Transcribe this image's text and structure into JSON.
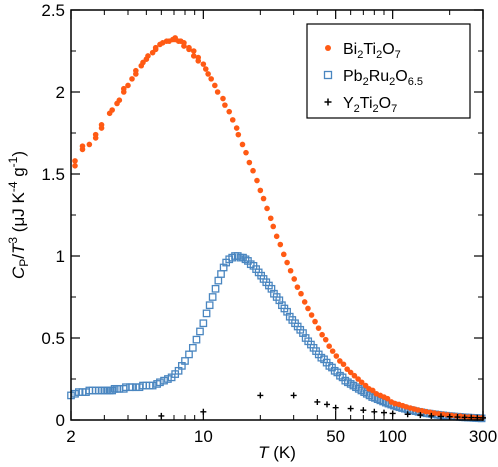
{
  "chart_data": {
    "type": "scatter",
    "x_scale": "log",
    "xlim": [
      2,
      300
    ],
    "ylim": [
      0,
      2.5
    ],
    "x_ticks": [
      2,
      10,
      50,
      100,
      300
    ],
    "x_tick_labels": [
      "2",
      "10",
      "50",
      "100",
      "300"
    ],
    "y_ticks": [
      0,
      0.5,
      1,
      1.5,
      2,
      2.5
    ],
    "y_tick_labels": [
      "0",
      "0.5",
      "1",
      "1.5",
      "2",
      "2.5"
    ],
    "xlabel": {
      "var": "T",
      "unit": " (K)"
    },
    "ylabel": {
      "main": "C",
      "sub": "P",
      "slash": "/",
      "var": "T",
      "exp": "3",
      "unit": " (μJ K",
      "unit_exp1": "-4",
      "unit_mid": " g",
      "unit_exp2": "-1",
      "unit_end": ")"
    },
    "grid": false,
    "legend_position": "top-right",
    "series": [
      {
        "name": "Bi2Ti2O7",
        "name_parts": [
          [
            "Bi",
            ""
          ],
          [
            "2",
            "sub"
          ],
          [
            "Ti",
            ""
          ],
          [
            "2",
            "sub"
          ],
          [
            "O",
            ""
          ],
          [
            "7",
            "sub"
          ]
        ],
        "marker": "dot",
        "color": "#ff5a14",
        "x": [
          2.1,
          2.1,
          2.3,
          2.3,
          2.5,
          2.7,
          2.7,
          2.9,
          2.9,
          3.2,
          3.3,
          3.5,
          3.6,
          3.8,
          3.8,
          4.0,
          4.2,
          4.4,
          4.4,
          4.7,
          4.8,
          5.0,
          5.1,
          5.4,
          5.6,
          5.6,
          5.9,
          6.1,
          6.4,
          6.6,
          6.9,
          7.1,
          7.1,
          7.4,
          7.6,
          7.9,
          7.9,
          8.4,
          8.4,
          8.9,
          8.9,
          9.4,
          9.4,
          10.0,
          10.3,
          10.6,
          11.0,
          11.5,
          11.9,
          12.7,
          13.0,
          13.7,
          14.3,
          15.0,
          15.3,
          16.1,
          16.8,
          17.5,
          18.3,
          19.2,
          20.0,
          20.8,
          21.7,
          22.7,
          23.4,
          24.4,
          25.5,
          26.6,
          27.7,
          28.9,
          30.2,
          31.4,
          32.8,
          34.3,
          35.7,
          37.3,
          38.9,
          40.6,
          42.4,
          44.3,
          46.2,
          48.2,
          50.4,
          52.6,
          55.0,
          57.5,
          60.0,
          62.8,
          65.7,
          68.6,
          72.0,
          75.0,
          78.5,
          82.0,
          86.0,
          90.0,
          94.0,
          98.5,
          103.0,
          108.0,
          113.0,
          118.0,
          124.0,
          130.0,
          136.0,
          143.0,
          150.0,
          158.0,
          166.0,
          175.0,
          185.0,
          195.0,
          205.0,
          216.0,
          228.0,
          240.0,
          253.0,
          267.0,
          281.0,
          296.0
        ],
        "y": [
          1.55,
          1.58,
          1.65,
          1.67,
          1.68,
          1.72,
          1.74,
          1.78,
          1.8,
          1.87,
          1.89,
          1.93,
          1.95,
          2.0,
          2.02,
          2.04,
          2.08,
          2.11,
          2.13,
          2.16,
          2.18,
          2.2,
          2.22,
          2.24,
          2.26,
          2.27,
          2.29,
          2.3,
          2.31,
          2.31,
          2.32,
          2.33,
          2.32,
          2.31,
          2.31,
          2.3,
          2.28,
          2.27,
          2.26,
          2.25,
          2.22,
          2.21,
          2.19,
          2.17,
          2.14,
          2.11,
          2.08,
          2.04,
          2.0,
          1.96,
          1.92,
          1.88,
          1.83,
          1.78,
          1.74,
          1.68,
          1.63,
          1.57,
          1.52,
          1.46,
          1.4,
          1.35,
          1.29,
          1.23,
          1.18,
          1.12,
          1.07,
          1.01,
          0.96,
          0.91,
          0.86,
          0.81,
          0.77,
          0.72,
          0.68,
          0.64,
          0.6,
          0.56,
          0.52,
          0.49,
          0.45,
          0.42,
          0.39,
          0.36,
          0.34,
          0.31,
          0.29,
          0.27,
          0.25,
          0.23,
          0.21,
          0.19,
          0.18,
          0.16,
          0.15,
          0.14,
          0.13,
          0.11,
          0.1,
          0.095,
          0.087,
          0.08,
          0.073,
          0.067,
          0.061,
          0.056,
          0.051,
          0.047,
          0.042,
          0.038,
          0.035,
          0.031,
          0.028,
          0.025,
          0.023,
          0.02,
          0.018,
          0.016,
          0.014,
          0.013
        ]
      },
      {
        "name": "Pb2Ru2O6.5",
        "name_parts": [
          [
            "Pb",
            ""
          ],
          [
            "2",
            "sub"
          ],
          [
            "Ru",
            ""
          ],
          [
            "2",
            "sub"
          ],
          [
            "O",
            ""
          ],
          [
            "6.5",
            "sub"
          ]
        ],
        "marker": "square",
        "color": "#4a86c0",
        "x": [
          2.0,
          2.1,
          2.2,
          2.3,
          2.4,
          2.5,
          2.6,
          2.7,
          2.8,
          2.9,
          3.0,
          3.1,
          3.2,
          3.3,
          3.4,
          3.5,
          3.6,
          3.8,
          3.9,
          4.1,
          4.2,
          4.4,
          4.6,
          4.8,
          5.0,
          5.2,
          5.4,
          5.7,
          5.9,
          6.2,
          6.5,
          6.8,
          7.1,
          7.4,
          7.7,
          8.0,
          8.4,
          8.8,
          9.2,
          9.6,
          10.0,
          10.4,
          10.8,
          11.2,
          11.6,
          12.0,
          12.4,
          12.8,
          13.2,
          13.7,
          14.2,
          14.7,
          15.2,
          15.7,
          16.2,
          16.7,
          17.2,
          17.8,
          18.4,
          19.0,
          19.6,
          20.2,
          20.8,
          21.5,
          22.2,
          22.9,
          23.6,
          24.4,
          25.2,
          26.0,
          26.8,
          27.7,
          28.6,
          29.5,
          30.5,
          31.5,
          32.5,
          33.6,
          34.7,
          35.8,
          37.0,
          38.2,
          39.4,
          40.7,
          42.0,
          43.4,
          44.8,
          46.3,
          47.8,
          49.4,
          51.0,
          52.7,
          54.4,
          56.2,
          58.0,
          60.0,
          62.0,
          64.0,
          66.2,
          68.4,
          70.7,
          73.0,
          75.5,
          78.0,
          80.6,
          83.3,
          86.1,
          89.0,
          92.0,
          95.0,
          98.3,
          101.6,
          105.0,
          108.5,
          112.2,
          116.0,
          120.0,
          124.0,
          128.2,
          132.5,
          137.0,
          141.7,
          146.5,
          151.5,
          156.6,
          162.0,
          167.5,
          173.2,
          179.0,
          185.0,
          191.3,
          197.8,
          204.5,
          211.5,
          218.7,
          226.0,
          233.7,
          241.6,
          249.8,
          258.3,
          267.0,
          276.0,
          285.4,
          295.0
        ],
        "y": [
          0.15,
          0.16,
          0.17,
          0.17,
          0.17,
          0.18,
          0.18,
          0.18,
          0.18,
          0.18,
          0.18,
          0.18,
          0.18,
          0.18,
          0.19,
          0.19,
          0.19,
          0.19,
          0.2,
          0.2,
          0.2,
          0.2,
          0.2,
          0.21,
          0.21,
          0.21,
          0.21,
          0.22,
          0.23,
          0.24,
          0.25,
          0.26,
          0.28,
          0.3,
          0.33,
          0.36,
          0.4,
          0.44,
          0.49,
          0.54,
          0.59,
          0.65,
          0.7,
          0.75,
          0.8,
          0.85,
          0.89,
          0.93,
          0.96,
          0.98,
          0.99,
          1.0,
          1.0,
          0.99,
          0.99,
          0.98,
          0.97,
          0.95,
          0.94,
          0.92,
          0.9,
          0.88,
          0.86,
          0.84,
          0.82,
          0.8,
          0.77,
          0.75,
          0.73,
          0.7,
          0.68,
          0.66,
          0.63,
          0.61,
          0.59,
          0.57,
          0.55,
          0.53,
          0.5,
          0.48,
          0.46,
          0.44,
          0.42,
          0.4,
          0.38,
          0.37,
          0.35,
          0.33,
          0.32,
          0.3,
          0.29,
          0.27,
          0.26,
          0.24,
          0.23,
          0.22,
          0.21,
          0.2,
          0.19,
          0.18,
          0.17,
          0.16,
          0.15,
          0.14,
          0.135,
          0.127,
          0.12,
          0.113,
          0.106,
          0.1,
          0.094,
          0.088,
          0.083,
          0.078,
          0.073,
          0.069,
          0.065,
          0.061,
          0.057,
          0.054,
          0.05,
          0.047,
          0.044,
          0.041,
          0.039,
          0.036,
          0.034,
          0.032,
          0.03,
          0.028,
          0.026,
          0.024,
          0.023,
          0.021,
          0.02,
          0.019,
          0.017,
          0.016,
          0.015,
          0.014,
          0.013,
          0.012,
          0.011,
          0.01
        ]
      },
      {
        "name": "Y2Ti2O7",
        "name_parts": [
          [
            "Y",
            ""
          ],
          [
            "2",
            "sub"
          ],
          [
            "Ti",
            ""
          ],
          [
            "2",
            "sub"
          ],
          [
            "O",
            ""
          ],
          [
            "7",
            "sub"
          ]
        ],
        "marker": "plus",
        "color": "#000000",
        "x": [
          6.0,
          10.0,
          20.0,
          30.0,
          40.0,
          45.0,
          50.0,
          60.0,
          70.0,
          80.0,
          90.0,
          100.0,
          120.0,
          140.0,
          160.0,
          180.0,
          200.0,
          220.0,
          240.0,
          260.0,
          280.0,
          300.0
        ],
        "y": [
          0.025,
          0.05,
          0.15,
          0.15,
          0.11,
          0.095,
          0.075,
          0.07,
          0.06,
          0.05,
          0.045,
          0.04,
          0.035,
          0.03,
          0.025,
          0.022,
          0.02,
          0.018,
          0.016,
          0.015,
          0.014,
          0.013
        ]
      }
    ]
  }
}
